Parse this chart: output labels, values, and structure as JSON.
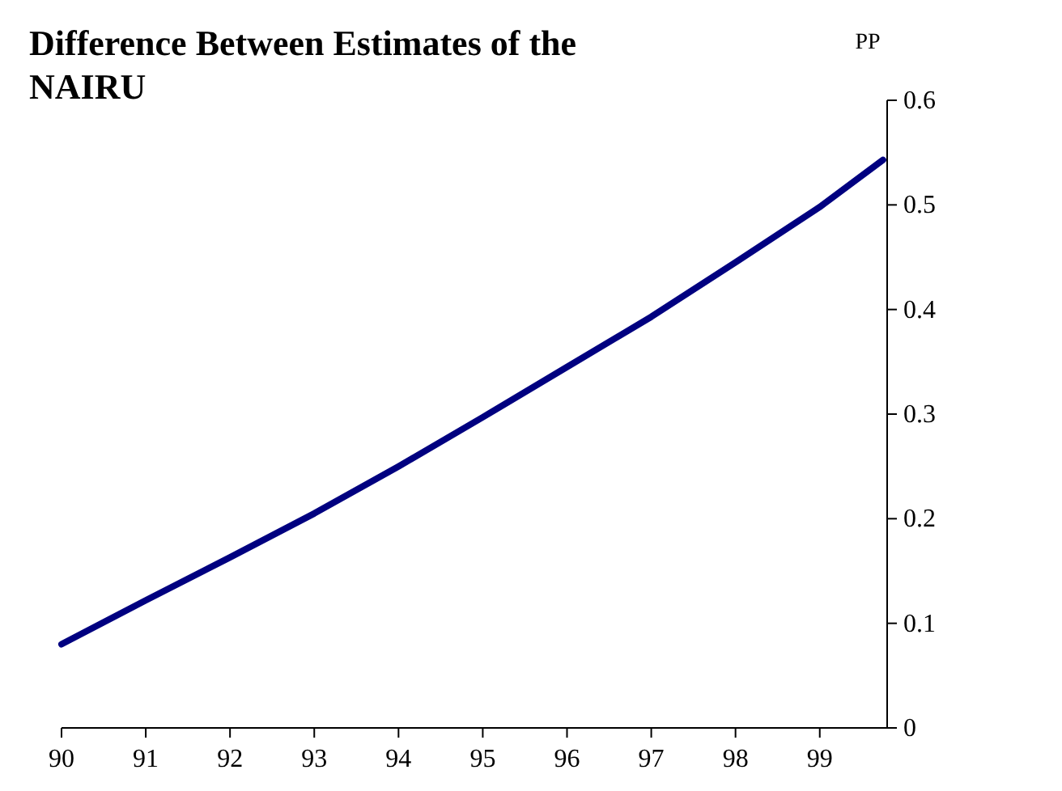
{
  "chart_data": {
    "type": "line",
    "title": "Difference Between Estimates of the NAIRU",
    "ylabel": "PP",
    "x": [
      90,
      91,
      92,
      93,
      94,
      95,
      96,
      97,
      98,
      99,
      99.75
    ],
    "series": [
      {
        "color": "#000080",
        "values": [
          0.08,
          0.122,
          0.163,
          0.205,
          0.25,
          0.297,
          0.345,
          0.393,
          0.445,
          0.498,
          0.543
        ]
      }
    ],
    "xlim": [
      90,
      99.8
    ],
    "xticks": [
      90,
      91,
      92,
      93,
      94,
      95,
      96,
      97,
      98,
      99
    ],
    "ylim": [
      0,
      0.6
    ],
    "yticks": [
      0,
      0.1,
      0.2,
      0.3,
      0.4,
      0.5,
      0.6
    ],
    "grid": false,
    "marker": "none",
    "line_style": "solid"
  }
}
